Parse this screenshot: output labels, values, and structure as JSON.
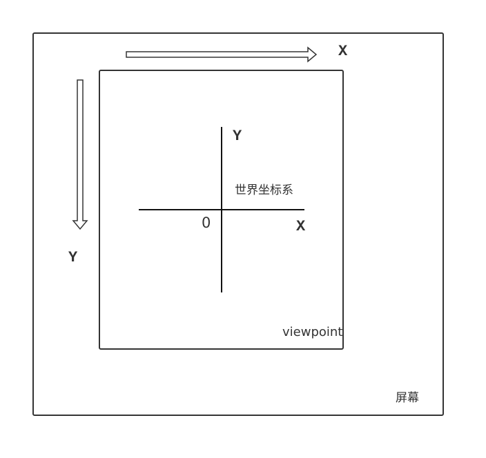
{
  "screen": {
    "label": "屏幕",
    "x_axis_label": "X",
    "y_axis_label": "Y"
  },
  "viewpoint": {
    "label": "viewpoint"
  },
  "world": {
    "label": "世界坐标系",
    "x_axis_label": "X",
    "y_axis_label": "Y",
    "origin_label": "0"
  },
  "colors": {
    "stroke": "#333333",
    "axis": "#111111",
    "background": "#ffffff"
  }
}
